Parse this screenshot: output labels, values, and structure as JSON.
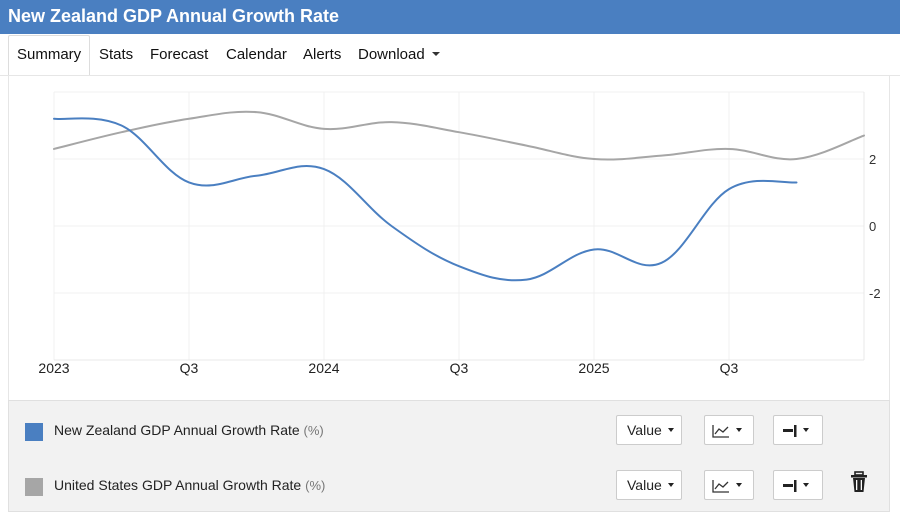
{
  "title": "New Zealand GDP Annual Growth Rate",
  "tabs": [
    "Summary",
    "Stats",
    "Forecast",
    "Calendar",
    "Alerts",
    "Download"
  ],
  "legend": {
    "rows": [
      {
        "label": "New Zealand GDP Annual Growth Rate",
        "unit": "(%)",
        "color": "#4a7fc1",
        "value_button": "Value"
      },
      {
        "label": "United States GDP Annual Growth Rate",
        "unit": "(%)",
        "color": "#a6a6a6",
        "value_button": "Value"
      }
    ]
  },
  "icons": {
    "chart_type": "line-chart-icon",
    "axis": "axis-side-icon",
    "delete": "trash-icon"
  },
  "chart_data": {
    "type": "line",
    "x_tick_labels": [
      "2023",
      "Q3",
      "2024",
      "Q3",
      "2025",
      "Q3"
    ],
    "y_tick_labels": [
      "2",
      "0",
      "-2"
    ],
    "ylim": [
      -4,
      4
    ],
    "grid": true,
    "series": [
      {
        "name": "New Zealand GDP Annual Growth Rate",
        "color": "#4a7fc1",
        "x": [
          "2023-Q1",
          "2023-Q2",
          "2023-Q3",
          "2023-Q4",
          "2024-Q1",
          "2024-Q2",
          "2024-Q3",
          "2024-Q4",
          "2025-Q1",
          "2025-Q2",
          "2025-Q3",
          "2025-Q4"
        ],
        "values": [
          3.2,
          3.0,
          1.3,
          1.5,
          1.7,
          0.0,
          -1.2,
          -1.6,
          -0.7,
          -1.1,
          1.1,
          1.3
        ]
      },
      {
        "name": "United States GDP Annual Growth Rate",
        "color": "#a6a6a6",
        "x": [
          "2023-Q1",
          "2023-Q2",
          "2023-Q3",
          "2023-Q4",
          "2024-Q1",
          "2024-Q2",
          "2024-Q3",
          "2024-Q4",
          "2025-Q1",
          "2025-Q2",
          "2025-Q3",
          "2025-Q4",
          "2026-Q1"
        ],
        "values": [
          2.3,
          2.8,
          3.2,
          3.4,
          2.9,
          3.1,
          2.8,
          2.4,
          2.0,
          2.1,
          2.3,
          2.0,
          2.7
        ]
      }
    ]
  }
}
